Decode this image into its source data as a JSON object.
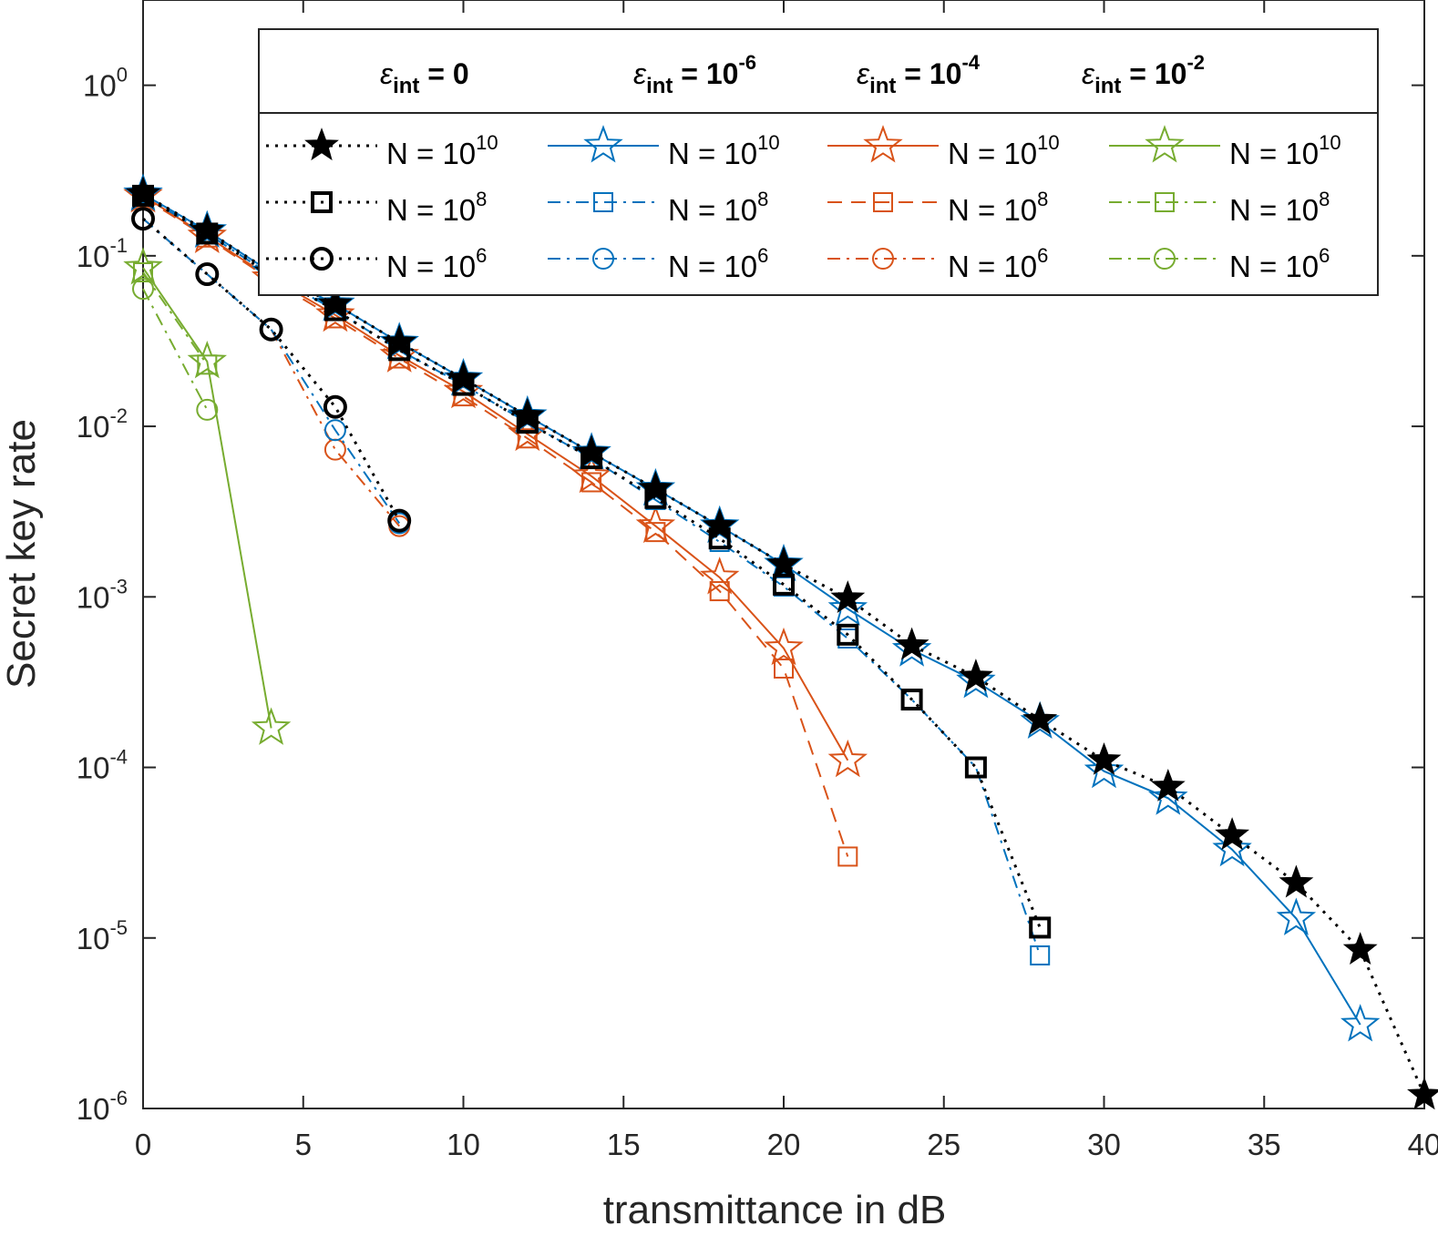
{
  "chart_data": {
    "type": "line",
    "xlabel": "transmittance in dB",
    "ylabel": "Secret key rate",
    "y_scale": "log",
    "xlim": [
      0,
      40
    ],
    "ylim_exponents": [
      -6,
      0.5
    ],
    "x_ticks": [
      "0",
      "5",
      "10",
      "15",
      "20",
      "25",
      "30",
      "35",
      "40"
    ],
    "y_ticks": [
      {
        "base": "10",
        "exp": "0",
        "value": 1
      },
      {
        "base": "10",
        "exp": "-1",
        "value": 0.1
      },
      {
        "base": "10",
        "exp": "-2",
        "value": 0.01
      },
      {
        "base": "10",
        "exp": "-3",
        "value": 0.001
      },
      {
        "base": "10",
        "exp": "-4",
        "value": 0.0001
      },
      {
        "base": "10",
        "exp": "-5",
        "value": 1e-05
      },
      {
        "base": "10",
        "exp": "-6",
        "value": 1e-06
      }
    ],
    "legend": {
      "placement": "top-right",
      "headers": [
        {
          "symbol": "ε",
          "sub": "int",
          "text": " = ",
          "value": "0",
          "exp": ""
        },
        {
          "symbol": "ε",
          "sub": "int",
          "text": " = ",
          "value": "10",
          "exp": "-6"
        },
        {
          "symbol": "ε",
          "sub": "int",
          "text": " = ",
          "value": "10",
          "exp": "-4"
        },
        {
          "symbol": "ε",
          "sub": "int",
          "text": " = ",
          "value": "10",
          "exp": "-2"
        }
      ],
      "entry_prefix": "N = ",
      "entry_base": "10"
    },
    "series": [
      {
        "name": "ε_int = 0, N = 10^10",
        "group": 0,
        "row": 0,
        "n_exp": "10",
        "color": "#000000",
        "dash": "dotted",
        "marker": "star",
        "filled": true,
        "x": [
          0,
          2,
          4,
          6,
          8,
          10,
          12,
          14,
          16,
          18,
          20,
          22,
          24,
          26,
          28,
          30,
          32,
          34,
          36,
          38,
          40
        ],
        "y": [
          0.23,
          0.14,
          0.08,
          0.052,
          0.031,
          0.019,
          0.0115,
          0.007,
          0.0043,
          0.0026,
          0.00155,
          0.00098,
          0.00052,
          0.00034,
          0.00019,
          0.00011,
          7.7e-05,
          4e-05,
          2.1e-05,
          8.5e-06,
          1.2e-06
        ]
      },
      {
        "name": "ε_int = 0, N = 10^8",
        "group": 0,
        "row": 1,
        "n_exp": "8",
        "color": "#000000",
        "dash": "dotted",
        "marker": "square",
        "filled": false,
        "bold": true,
        "x": [
          0,
          2,
          4,
          6,
          8,
          10,
          12,
          14,
          16,
          18,
          20,
          22,
          24,
          26,
          28
        ],
        "y": [
          0.225,
          0.135,
          0.077,
          0.048,
          0.028,
          0.0175,
          0.0105,
          0.0065,
          0.0038,
          0.0022,
          0.00118,
          0.0006,
          0.00025,
          0.0001,
          1.15e-05
        ]
      },
      {
        "name": "ε_int = 0, N = 10^6",
        "group": 0,
        "row": 2,
        "n_exp": "6",
        "color": "#000000",
        "dash": "dotted",
        "marker": "circle",
        "filled": false,
        "bold": true,
        "x": [
          0,
          2,
          4,
          6,
          8
        ],
        "y": [
          0.165,
          0.078,
          0.037,
          0.013,
          0.0028
        ]
      },
      {
        "name": "ε_int = 10^-6, N = 10^10",
        "group": 1,
        "row": 0,
        "n_exp": "10",
        "color": "#0072BD",
        "dash": "solid",
        "marker": "star",
        "filled": false,
        "x": [
          0,
          2,
          4,
          6,
          8,
          10,
          12,
          14,
          16,
          18,
          20,
          22,
          24,
          26,
          28,
          30,
          32,
          34,
          36,
          38
        ],
        "y": [
          0.23,
          0.14,
          0.08,
          0.052,
          0.031,
          0.019,
          0.0115,
          0.007,
          0.0043,
          0.0026,
          0.00155,
          0.00085,
          0.00049,
          0.00032,
          0.000185,
          9.5e-05,
          6.6e-05,
          3.3e-05,
          1.3e-05,
          3.1e-06
        ]
      },
      {
        "name": "ε_int = 10^-6, N = 10^8",
        "group": 1,
        "row": 1,
        "n_exp": "8",
        "color": "#0072BD",
        "dash": "dashdot",
        "marker": "square",
        "filled": false,
        "x": [
          0,
          2,
          4,
          6,
          8,
          10,
          12,
          14,
          16,
          18,
          20,
          22,
          24,
          26,
          28
        ],
        "y": [
          0.225,
          0.135,
          0.077,
          0.048,
          0.028,
          0.0175,
          0.0105,
          0.0065,
          0.0037,
          0.0021,
          0.00115,
          0.00057,
          0.00025,
          0.0001,
          7.9e-06
        ]
      },
      {
        "name": "ε_int = 10^-6, N = 10^6",
        "group": 1,
        "row": 2,
        "n_exp": "6",
        "color": "#0072BD",
        "dash": "dashdot",
        "marker": "circle",
        "filled": false,
        "x": [
          0,
          2,
          4,
          6,
          8
        ],
        "y": [
          0.165,
          0.078,
          0.037,
          0.0095,
          0.0027
        ]
      },
      {
        "name": "ε_int = 10^-4, N = 10^10",
        "group": 2,
        "row": 0,
        "n_exp": "10",
        "color": "#D95319",
        "dash": "solid",
        "marker": "star",
        "filled": false,
        "x": [
          0,
          2,
          4,
          6,
          8,
          10,
          12,
          14,
          16,
          18,
          20,
          22
        ],
        "y": [
          0.225,
          0.13,
          0.074,
          0.045,
          0.026,
          0.016,
          0.009,
          0.0051,
          0.0026,
          0.0013,
          0.0005,
          0.00011
        ]
      },
      {
        "name": "ε_int = 10^-4, N = 10^8",
        "group": 2,
        "row": 1,
        "n_exp": "8",
        "color": "#D95319",
        "dash": "dashed",
        "marker": "square",
        "filled": false,
        "x": [
          0,
          2,
          4,
          6,
          8,
          10,
          12,
          14,
          16,
          18,
          20,
          22
        ],
        "y": [
          0.22,
          0.128,
          0.072,
          0.043,
          0.025,
          0.015,
          0.0085,
          0.0047,
          0.0024,
          0.00108,
          0.00038,
          3e-05
        ]
      },
      {
        "name": "ε_int = 10^-4, N = 10^6",
        "group": 2,
        "row": 2,
        "n_exp": "6",
        "color": "#D95319",
        "dash": "dashdot",
        "marker": "circle",
        "filled": false,
        "x": [
          0,
          2,
          4,
          6,
          8
        ],
        "y": [
          0.165,
          0.078,
          0.037,
          0.0073,
          0.0026
        ]
      },
      {
        "name": "ε_int = 10^-2, N = 10^10",
        "group": 3,
        "row": 0,
        "n_exp": "10",
        "color": "#77AC30",
        "dash": "solid",
        "marker": "star",
        "filled": false,
        "x": [
          0,
          2,
          4
        ],
        "y": [
          0.085,
          0.024,
          0.00017
        ]
      },
      {
        "name": "ε_int = 10^-2, N = 10^8",
        "group": 3,
        "row": 1,
        "n_exp": "8",
        "color": "#77AC30",
        "dash": "dashdot",
        "marker": "square",
        "filled": false,
        "x": [
          0,
          2
        ],
        "y": [
          0.08,
          0.023
        ]
      },
      {
        "name": "ε_int = 10^-2, N = 10^6",
        "group": 3,
        "row": 2,
        "n_exp": "6",
        "color": "#77AC30",
        "dash": "dashdot",
        "marker": "circle",
        "filled": false,
        "x": [
          0,
          2
        ],
        "y": [
          0.064,
          0.0125
        ]
      }
    ]
  }
}
